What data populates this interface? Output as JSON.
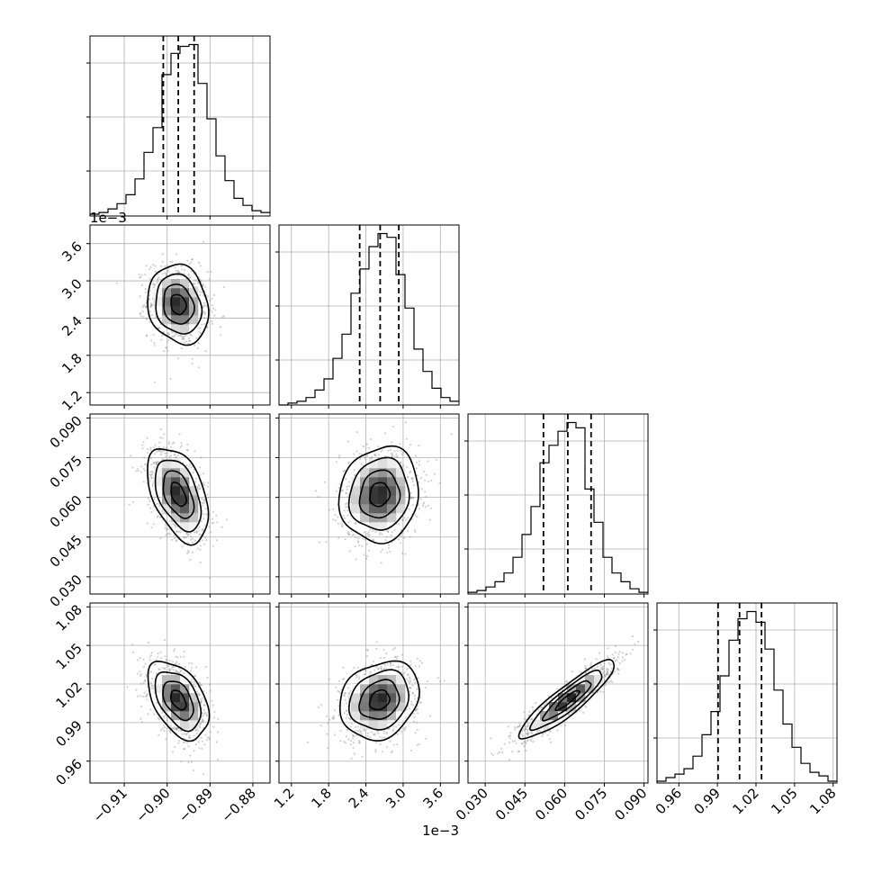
{
  "chart_data": {
    "type": "corner",
    "colors": {
      "line": "#000000",
      "grid": "#b0b0b0",
      "points": "#7f7f7f"
    },
    "grid": true,
    "quantile_lines": "dashed",
    "params": [
      {
        "id": "p0",
        "range": [
          -0.918,
          -0.876
        ],
        "ticks": [
          -0.91,
          -0.9,
          -0.89,
          -0.88
        ],
        "tick_labels": [
          "−0.91",
          "−0.90",
          "−0.89",
          "−0.88"
        ],
        "scale_label": "",
        "mean": -0.8974,
        "std": 0.00355,
        "quantiles": [
          -0.9009,
          -0.8974,
          -0.8937
        ]
      },
      {
        "id": "p1",
        "range": [
          0.001,
          0.0039
        ],
        "ticks": [
          0.0012,
          0.0018,
          0.0024,
          0.003,
          0.0036
        ],
        "tick_labels": [
          "1.2",
          "1.8",
          "2.4",
          "3.0",
          "3.6"
        ],
        "scale_label": "1e−3",
        "mean": 0.00262,
        "std": 0.00032,
        "quantiles": [
          0.0023,
          0.00263,
          0.00293
        ]
      },
      {
        "id": "p2",
        "range": [
          0.0235,
          0.0915
        ],
        "ticks": [
          0.03,
          0.045,
          0.06,
          0.075,
          0.09
        ],
        "tick_labels": [
          "0.030",
          "0.045",
          "0.060",
          "0.075",
          "0.090"
        ],
        "scale_label": "",
        "mean": 0.0611,
        "std": 0.009,
        "quantiles": [
          0.052,
          0.0612,
          0.07
        ]
      },
      {
        "id": "p3",
        "range": [
          0.943,
          1.083
        ],
        "ticks": [
          0.96,
          0.99,
          1.02,
          1.05,
          1.08
        ],
        "tick_labels": [
          "0.96",
          "0.99",
          "1.02",
          "1.05",
          "1.08"
        ],
        "scale_label": "",
        "mean": 1.0075,
        "std": 0.0152,
        "quantiles": [
          0.9905,
          1.0072,
          1.0243
        ]
      }
    ],
    "correlations": {
      "1-0": -0.15,
      "2-0": -0.45,
      "2-1": 0.1,
      "3-0": -0.45,
      "3-1": 0.2,
      "3-2": 0.9
    },
    "histograms": {
      "p0": {
        "edges_start": -0.918,
        "bin_width": 0.0021,
        "counts": [
          1,
          2,
          4,
          7,
          12,
          21,
          36,
          50,
          80,
          92,
          96,
          97,
          75,
          55,
          34,
          20,
          10,
          6,
          3,
          2
        ]
      },
      "p1": {
        "edges_start": 0.001,
        "bin_width": 0.000145,
        "counts": [
          0,
          1,
          2,
          4,
          8,
          14,
          25,
          38,
          60,
          73,
          85,
          92,
          90,
          70,
          52,
          30,
          18,
          9,
          4,
          2
        ]
      },
      "p2": {
        "edges_start": 0.0235,
        "bin_width": 0.0034,
        "counts": [
          1,
          2,
          4,
          7,
          12,
          21,
          34,
          50,
          75,
          85,
          93,
          98,
          95,
          60,
          41,
          21,
          12,
          7,
          3,
          1
        ]
      },
      "p3": {
        "edges_start": 0.943,
        "bin_width": 0.007,
        "counts": [
          1,
          3,
          5,
          8,
          15,
          27,
          40,
          60,
          80,
          92,
          96,
          90,
          75,
          52,
          33,
          20,
          11,
          6,
          4,
          1
        ]
      }
    }
  }
}
